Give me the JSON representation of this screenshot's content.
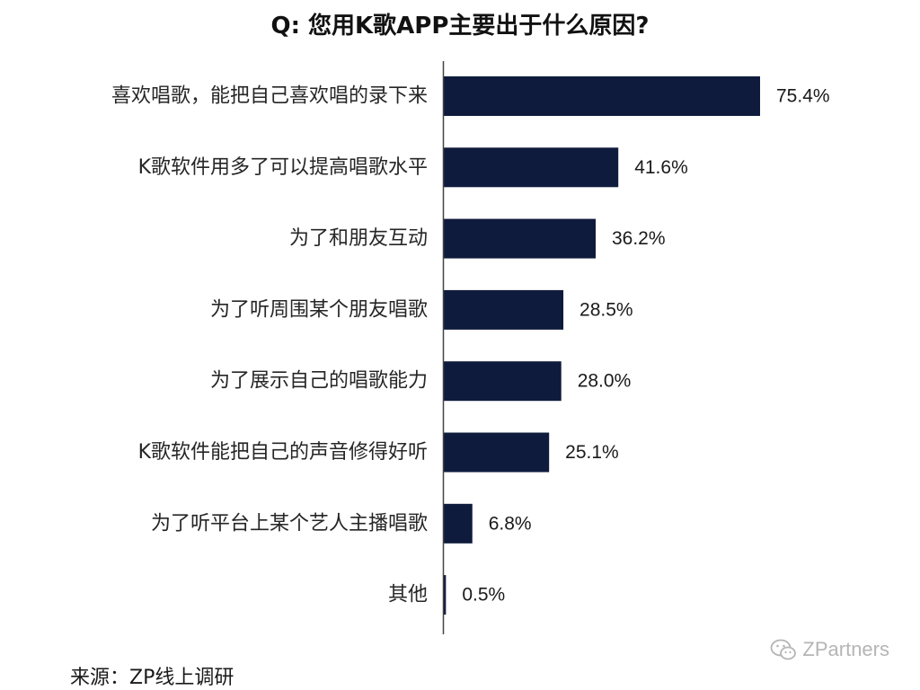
{
  "chart_data": {
    "type": "bar",
    "orientation": "horizontal",
    "title": "Q: 您用K歌APP主要出于什么原因?",
    "categories": [
      "喜欢唱歌，能把自己喜欢唱的录下来",
      "K歌软件用多了可以提高唱歌水平",
      "为了和朋友互动",
      "为了听周围某个朋友唱歌",
      "为了展示自己的唱歌能力",
      "K歌软件能把自己的声音修得好听",
      "为了听平台上某个艺人主播唱歌",
      "其他"
    ],
    "values": [
      75.4,
      41.6,
      36.2,
      28.5,
      28.0,
      25.1,
      6.8,
      0.5
    ],
    "value_labels": [
      "75.4%",
      "41.6%",
      "36.2%",
      "28.5%",
      "28.0%",
      "25.1%",
      "6.8%",
      "0.5%"
    ],
    "unit": "%",
    "xlim": [
      0,
      100
    ],
    "grid": false,
    "legend": "none",
    "bar_color": "#0f1b3d",
    "axis_color": "#444444"
  },
  "source": "来源：ZP线上调研",
  "watermark": {
    "icon": "wechat-icon",
    "text": "ZPartners"
  }
}
